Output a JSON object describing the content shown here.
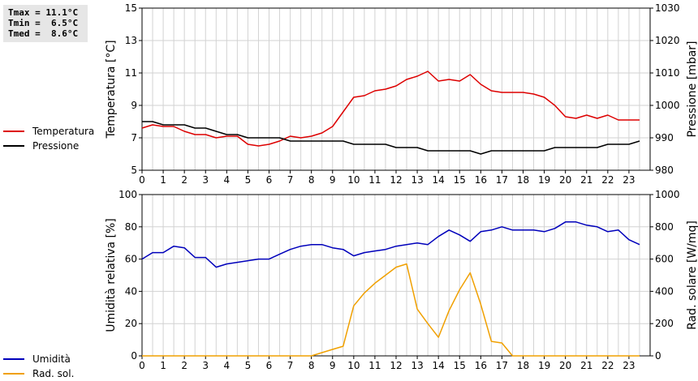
{
  "stats": {
    "tmax": "Tmax = 11.1°C",
    "tmin": "Tmin =  6.5°C",
    "tmed": "Tmed =  8.6°C"
  },
  "chart_data": [
    {
      "type": "line",
      "x": [
        0,
        0.5,
        1,
        1.5,
        2,
        2.5,
        3,
        3.5,
        4,
        4.5,
        5,
        5.5,
        6,
        6.5,
        7,
        7.5,
        8,
        8.5,
        9,
        9.5,
        10,
        10.5,
        11,
        11.5,
        12,
        12.5,
        13,
        13.5,
        14,
        14.5,
        15,
        15.5,
        16,
        16.5,
        17,
        17.5,
        18,
        18.5,
        19,
        19.5,
        20,
        20.5,
        21,
        21.5,
        22,
        22.5,
        23,
        23.5
      ],
      "series": [
        {
          "name": "Temperatura",
          "axis": "left",
          "color": "#dd0000",
          "values": [
            7.6,
            7.8,
            7.7,
            7.7,
            7.4,
            7.2,
            7.2,
            7.0,
            7.1,
            7.1,
            6.6,
            6.5,
            6.6,
            6.8,
            7.1,
            7.0,
            7.1,
            7.3,
            7.7,
            8.6,
            9.5,
            9.6,
            9.9,
            10.0,
            10.2,
            10.6,
            10.8,
            11.1,
            10.5,
            10.6,
            10.5,
            10.9,
            10.3,
            9.9,
            9.8,
            9.8,
            9.8,
            9.7,
            9.5,
            9.0,
            8.3,
            8.2,
            8.4,
            8.2,
            8.4,
            8.1,
            8.1,
            8.1
          ]
        },
        {
          "name": "Pressione",
          "axis": "right",
          "color": "#000000",
          "values": [
            995,
            995,
            994,
            994,
            994,
            993,
            993,
            992,
            991,
            991,
            990,
            990,
            990,
            990,
            989,
            989,
            989,
            989,
            989,
            989,
            988,
            988,
            988,
            988,
            987,
            987,
            987,
            986,
            986,
            986,
            986,
            986,
            985,
            986,
            986,
            986,
            986,
            986,
            986,
            987,
            987,
            987,
            987,
            987,
            988,
            988,
            988,
            989
          ]
        }
      ],
      "xlim": [
        0,
        24
      ],
      "xticks": [
        "0",
        "1",
        "2",
        "3",
        "4",
        "5",
        "6",
        "7",
        "8",
        "9",
        "10",
        "11",
        "12",
        "13",
        "14",
        "15",
        "16",
        "17",
        "18",
        "19",
        "20",
        "21",
        "22",
        "23"
      ],
      "ylabel": "Temperatura [°C]",
      "ylim": [
        5,
        15
      ],
      "yticks": [
        "5",
        "7",
        "9",
        "11",
        "13",
        "15"
      ],
      "y2label": "Pressione [mbar]",
      "y2lim": [
        980,
        1030
      ],
      "y2ticks": [
        "980",
        "990",
        "1000",
        "1010",
        "1020",
        "1030"
      ],
      "grid": true,
      "legend": "left"
    },
    {
      "type": "line",
      "x": [
        0,
        0.5,
        1,
        1.5,
        2,
        2.5,
        3,
        3.5,
        4,
        4.5,
        5,
        5.5,
        6,
        6.5,
        7,
        7.5,
        8,
        8.5,
        9,
        9.5,
        10,
        10.5,
        11,
        11.5,
        12,
        12.5,
        13,
        13.5,
        14,
        14.5,
        15,
        15.5,
        16,
        16.5,
        17,
        17.5,
        18,
        18.5,
        19,
        19.5,
        20,
        20.5,
        21,
        21.5,
        22,
        22.5,
        23,
        23.5
      ],
      "series": [
        {
          "name": "Umidità",
          "axis": "left",
          "color": "#0000bb",
          "values": [
            60,
            64,
            64,
            68,
            67,
            61,
            61,
            55,
            57,
            58,
            59,
            60,
            60,
            63,
            66,
            68,
            69,
            69,
            67,
            66,
            62,
            64,
            65,
            66,
            68,
            69,
            70,
            69,
            74,
            78,
            75,
            71,
            77,
            78,
            80,
            78,
            78,
            78,
            77,
            79,
            83,
            83,
            81,
            80,
            77,
            78,
            72,
            69
          ]
        },
        {
          "name": "Rad. sol.",
          "axis": "right",
          "color": "#f0a000",
          "values": [
            0,
            0,
            0,
            0,
            0,
            0,
            0,
            0,
            0,
            0,
            0,
            0,
            0,
            0,
            0,
            0,
            0,
            20,
            40,
            60,
            310,
            390,
            450,
            500,
            550,
            570,
            290,
            200,
            115,
            280,
            410,
            515,
            320,
            90,
            80,
            0,
            0,
            0,
            0,
            0,
            0,
            0,
            0,
            0,
            0,
            0,
            0,
            0
          ]
        }
      ],
      "xlim": [
        0,
        24
      ],
      "xticks": [
        "0",
        "1",
        "2",
        "3",
        "4",
        "5",
        "6",
        "7",
        "8",
        "9",
        "10",
        "11",
        "12",
        "13",
        "14",
        "15",
        "16",
        "17",
        "18",
        "19",
        "20",
        "21",
        "22",
        "23"
      ],
      "ylabel": "Umidità relativa [%]",
      "ylim": [
        0,
        100
      ],
      "yticks": [
        "0",
        "20",
        "40",
        "60",
        "80",
        "100"
      ],
      "y2label": "Rad. solare [W/mq]",
      "y2lim": [
        0,
        1000
      ],
      "y2ticks": [
        "0",
        "200",
        "400",
        "600",
        "800",
        "1000"
      ],
      "grid": true,
      "legend": "left"
    }
  ]
}
